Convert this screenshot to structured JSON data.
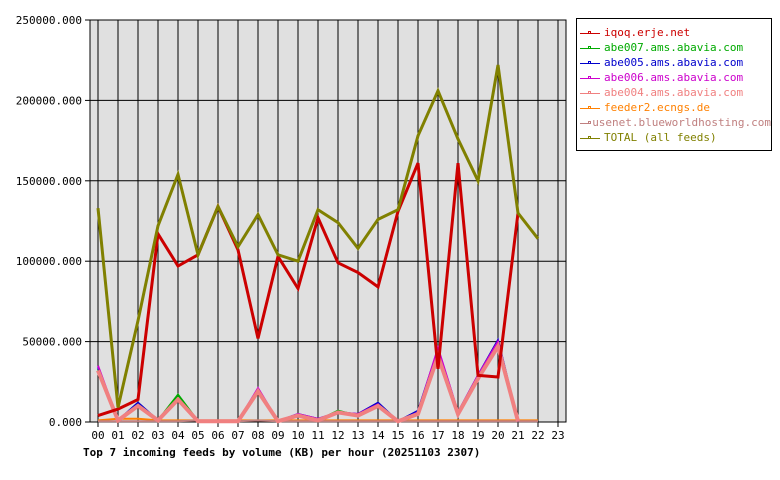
{
  "chart_data": {
    "type": "line",
    "title": "Top 7 incoming feeds by volume (KB) per hour (20251103 2307)",
    "xlabel": "",
    "ylabel": "",
    "ylim": [
      0,
      250000
    ],
    "grid": true,
    "legend_position": "right",
    "y_ticks": [
      "0.000",
      "50000.000",
      "100000.000",
      "150000.000",
      "200000.000",
      "250000.000"
    ],
    "categories": [
      "00",
      "01",
      "02",
      "03",
      "04",
      "05",
      "06",
      "07",
      "08",
      "09",
      "10",
      "11",
      "12",
      "13",
      "14",
      "15",
      "16",
      "17",
      "18",
      "19",
      "20",
      "21",
      "22",
      "23"
    ],
    "series": [
      {
        "name": "iqoq.erje.net",
        "color": "#cc0000",
        "values": [
          4000,
          8000,
          14000,
          117000,
          97000,
          104000,
          134000,
          107000,
          52000,
          103000,
          83000,
          127000,
          99000,
          93000,
          84000,
          131000,
          161000,
          33000,
          161000,
          29000,
          28000,
          130000,
          null,
          null
        ]
      },
      {
        "name": "abe007.ams.abavia.com",
        "color": "#00aa00",
        "values": [
          33000,
          1000,
          10000,
          1000,
          17000,
          500,
          500,
          500,
          20000,
          500,
          4000,
          1000,
          7000,
          4000,
          10000,
          500,
          6000,
          44000,
          5000,
          28000,
          48000,
          500,
          null,
          null
        ]
      },
      {
        "name": "abe005.ams.abavia.com",
        "color": "#0000cc",
        "values": [
          34000,
          1000,
          12000,
          1000,
          14000,
          500,
          500,
          500,
          20000,
          500,
          5000,
          2000,
          6000,
          5000,
          12000,
          500,
          7000,
          45000,
          6000,
          29000,
          51000,
          500,
          null,
          null
        ]
      },
      {
        "name": "abe006.ams.abavia.com",
        "color": "#cc00cc",
        "values": [
          35000,
          1000,
          10000,
          1000,
          14000,
          500,
          500,
          500,
          21000,
          500,
          5000,
          2000,
          6000,
          5000,
          11000,
          500,
          6000,
          46000,
          6000,
          29000,
          50000,
          500,
          null,
          null
        ]
      },
      {
        "name": "abe004.ams.abavia.com",
        "color": "#f08080",
        "values": [
          32000,
          1000,
          10000,
          1000,
          14000,
          500,
          500,
          500,
          19000,
          500,
          4000,
          1000,
          6000,
          4000,
          10000,
          500,
          5000,
          41000,
          5000,
          27000,
          47000,
          500,
          null,
          null
        ]
      },
      {
        "name": "feeder2.ecngs.de",
        "color": "#ff8000",
        "values": [
          1000,
          2000,
          2000,
          1000,
          1000,
          1000,
          1000,
          1000,
          1000,
          1000,
          1000,
          1000,
          1000,
          1000,
          1000,
          1000,
          1000,
          1000,
          1000,
          1000,
          1000,
          1000,
          1000,
          null
        ]
      },
      {
        "name": "usenet.blueworldhosting.com",
        "color": "#c08080",
        "values": [
          500,
          500,
          500,
          500,
          500,
          1000,
          500,
          500,
          1000,
          500,
          500,
          500,
          500,
          500,
          500,
          500,
          500,
          500,
          500,
          500,
          500,
          500,
          500,
          null
        ]
      },
      {
        "name": "TOTAL (all feeds)",
        "color": "#808000",
        "values": [
          133000,
          9000,
          63000,
          122000,
          154000,
          104000,
          134000,
          109000,
          129000,
          104000,
          100000,
          132000,
          124000,
          108000,
          126000,
          132000,
          178000,
          206000,
          176000,
          150000,
          222000,
          130000,
          114000,
          null
        ]
      }
    ]
  }
}
